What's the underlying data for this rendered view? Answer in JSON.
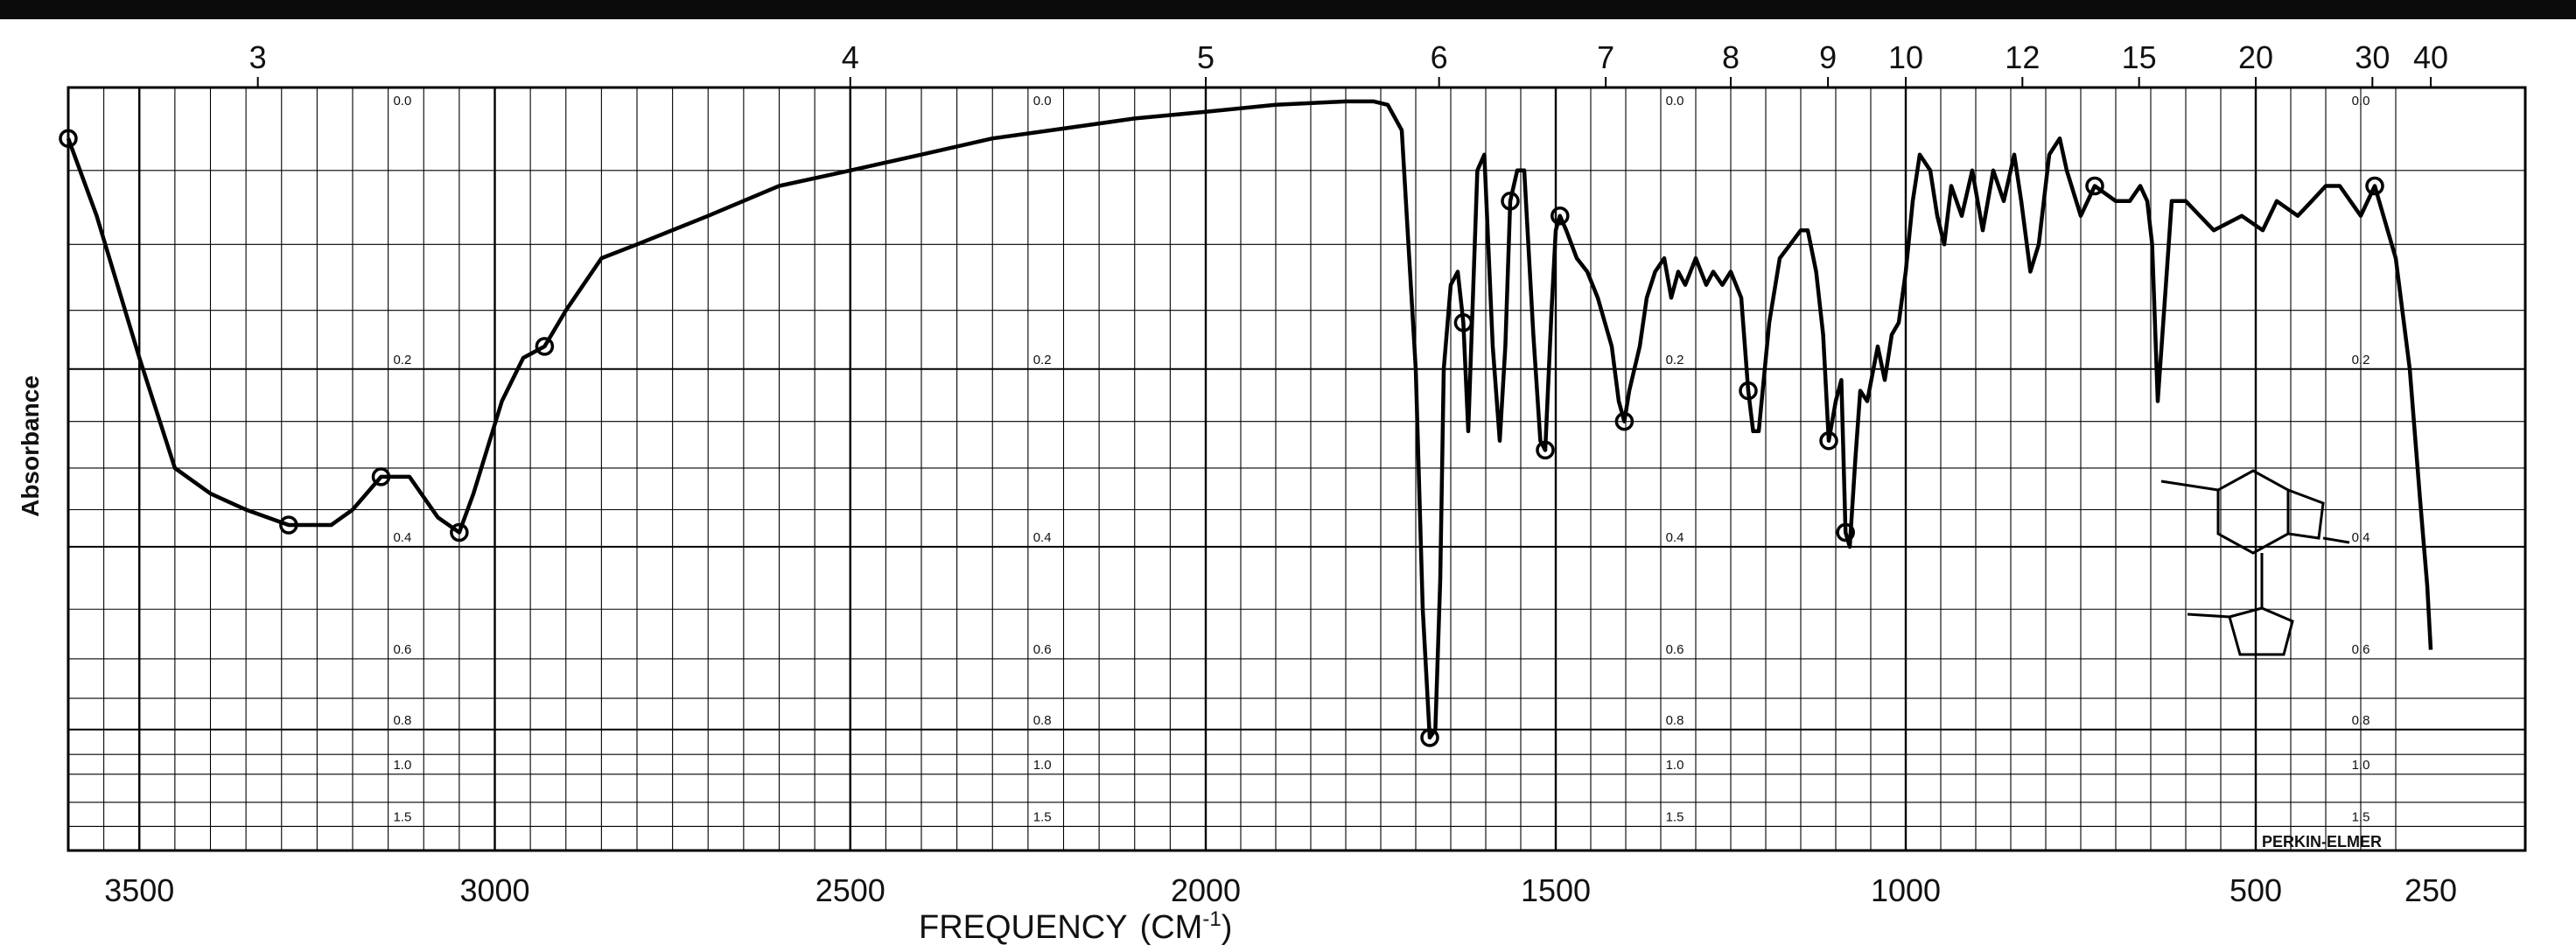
{
  "chart_data": {
    "type": "line",
    "title": "",
    "xlabel": "FREQUENCY",
    "xlabel_unit": "(CM",
    "xlabel_sup": "-1",
    "xlabel_close": ")",
    "ylabel": "Absorbance",
    "brand": "PERKIN-ELMER",
    "xlim": [
      3600,
      250
    ],
    "ylim": [
      0.0,
      1.5
    ],
    "grid": true,
    "x_ticks": [
      "3500",
      "3000",
      "2500",
      "2000",
      "1500",
      "1000",
      "500",
      "250"
    ],
    "top_ticks": [
      "3",
      "4",
      "5",
      "6",
      "7",
      "8",
      "9",
      "10",
      "12",
      "15",
      "20",
      "30",
      "40"
    ],
    "absorbance_ticks": [
      "0.0",
      "0.2",
      "0.4",
      "0.6",
      "0.8",
      "1.0",
      "1.5"
    ],
    "series": [
      {
        "x": [
          3600,
          3560,
          3500,
          3450,
          3400,
          3350,
          3290,
          3230,
          3200,
          3160,
          3120,
          3080,
          3050,
          3030,
          2990,
          2960,
          2930,
          2900,
          2850,
          2800,
          2700,
          2600,
          2500,
          2400,
          2300,
          2200,
          2100,
          2000,
          1900,
          1800,
          1760,
          1740,
          1720,
          1700,
          1690,
          1680,
          1672,
          1665,
          1660,
          1650,
          1640,
          1632,
          1625,
          1612,
          1602,
          1590,
          1580,
          1572,
          1565,
          1555,
          1545,
          1532,
          1522,
          1515,
          1506,
          1500,
          1494,
          1485,
          1470,
          1455,
          1440,
          1420,
          1410,
          1402,
          1395,
          1380,
          1370,
          1358,
          1345,
          1335,
          1325,
          1315,
          1300,
          1285,
          1275,
          1262,
          1250,
          1235,
          1225,
          1218,
          1210,
          1195,
          1180,
          1165,
          1150,
          1140,
          1128,
          1118,
          1110,
          1100,
          1092,
          1086,
          1080,
          1072,
          1065,
          1055,
          1040,
          1030,
          1020,
          1010,
          1000,
          990,
          980,
          965,
          955,
          945,
          935,
          920,
          905,
          890,
          875,
          860,
          845,
          835,
          822,
          810,
          795,
          780,
          770,
          750,
          730,
          700,
          680,
          665,
          655,
          648,
          640,
          620,
          600,
          560,
          520,
          490,
          470,
          440,
          420,
          400,
          380,
          350,
          330,
          300,
          280,
          265,
          255,
          250
        ],
        "y": [
          0.03,
          0.08,
          0.19,
          0.3,
          0.33,
          0.35,
          0.37,
          0.37,
          0.35,
          0.31,
          0.31,
          0.36,
          0.38,
          0.33,
          0.23,
          0.19,
          0.18,
          0.15,
          0.11,
          0.1,
          0.08,
          0.06,
          0.05,
          0.04,
          0.03,
          0.024,
          0.018,
          0.014,
          0.01,
          0.008,
          0.008,
          0.01,
          0.025,
          0.2,
          0.5,
          0.83,
          0.8,
          0.45,
          0.2,
          0.13,
          0.12,
          0.16,
          0.26,
          0.05,
          0.04,
          0.18,
          0.27,
          0.18,
          0.07,
          0.05,
          0.05,
          0.17,
          0.27,
          0.28,
          0.15,
          0.09,
          0.08,
          0.09,
          0.11,
          0.12,
          0.14,
          0.18,
          0.23,
          0.25,
          0.22,
          0.18,
          0.14,
          0.12,
          0.11,
          0.14,
          0.12,
          0.13,
          0.11,
          0.13,
          0.12,
          0.13,
          0.12,
          0.14,
          0.22,
          0.26,
          0.26,
          0.16,
          0.11,
          0.1,
          0.09,
          0.09,
          0.12,
          0.17,
          0.27,
          0.23,
          0.21,
          0.38,
          0.4,
          0.29,
          0.22,
          0.23,
          0.18,
          0.21,
          0.17,
          0.16,
          0.12,
          0.07,
          0.04,
          0.05,
          0.08,
          0.1,
          0.06,
          0.08,
          0.05,
          0.09,
          0.05,
          0.07,
          0.04,
          0.07,
          0.12,
          0.1,
          0.04,
          0.03,
          0.05,
          0.08,
          0.06,
          0.07,
          0.07,
          0.06,
          0.07,
          0.1,
          0.23,
          0.07,
          0.07,
          0.09,
          0.08,
          0.09,
          0.07,
          0.08,
          0.07,
          0.06,
          0.06,
          0.08,
          0.06,
          0.11,
          0.2,
          0.34,
          0.46,
          0.58
        ]
      }
    ]
  }
}
